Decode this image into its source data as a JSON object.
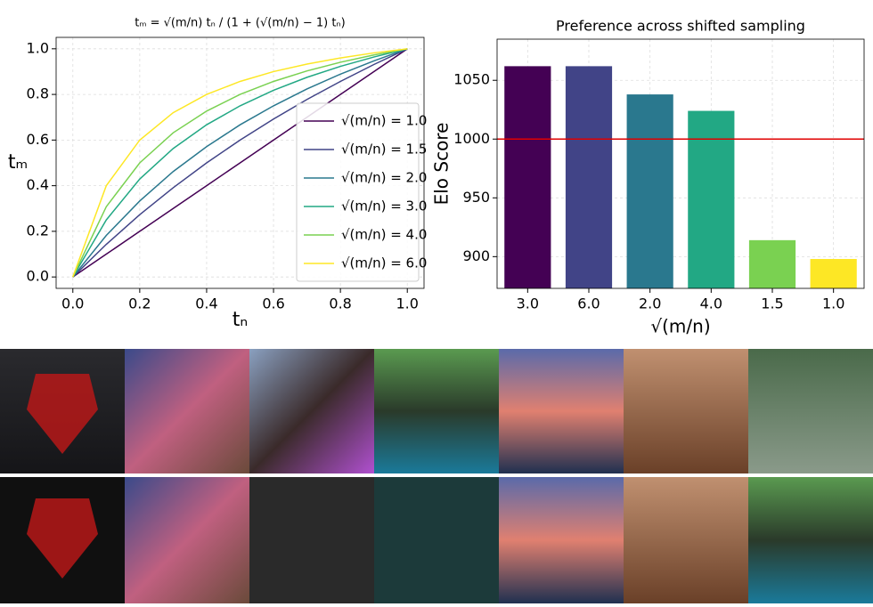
{
  "chart_data": [
    {
      "type": "line",
      "title": "tₘ = √(m/n) tₙ / (1 + (√(m/n) − 1) tₙ)",
      "x_label": "tₙ",
      "y_label": "tₘ",
      "x": [
        0,
        0.1,
        0.2,
        0.3,
        0.4,
        0.5,
        0.6,
        0.7,
        0.8,
        0.9,
        1
      ],
      "series": [
        {
          "name": "√(m/n) = 1.0",
          "color": "#440154",
          "values": [
            0,
            0.1,
            0.2,
            0.3,
            0.4,
            0.5,
            0.6,
            0.7,
            0.8,
            0.9,
            1
          ]
        },
        {
          "name": "√(m/n) = 1.5",
          "color": "#414487",
          "values": [
            0,
            0.143,
            0.273,
            0.391,
            0.5,
            0.6,
            0.692,
            0.778,
            0.857,
            0.931,
            1
          ]
        },
        {
          "name": "√(m/n) = 2.0",
          "color": "#2a788e",
          "values": [
            0,
            0.182,
            0.333,
            0.462,
            0.571,
            0.667,
            0.75,
            0.824,
            0.889,
            0.947,
            1
          ]
        },
        {
          "name": "√(m/n) = 3.0",
          "color": "#22a884",
          "values": [
            0,
            0.25,
            0.429,
            0.563,
            0.667,
            0.75,
            0.818,
            0.875,
            0.923,
            0.964,
            1
          ]
        },
        {
          "name": "√(m/n) = 4.0",
          "color": "#7ad151",
          "values": [
            0,
            0.308,
            0.5,
            0.632,
            0.727,
            0.8,
            0.857,
            0.903,
            0.941,
            0.973,
            1
          ]
        },
        {
          "name": "√(m/n) = 6.0",
          "color": "#fde725",
          "values": [
            0,
            0.4,
            0.6,
            0.72,
            0.8,
            0.857,
            0.9,
            0.933,
            0.96,
            0.982,
            1
          ]
        }
      ],
      "xlim": [
        -0.05,
        1.05
      ],
      "ylim": [
        -0.05,
        1.05
      ],
      "xticks": [
        {
          "value": 0,
          "label": "0.0"
        },
        0.2,
        0.4,
        0.6,
        0.8,
        {
          "value": 1,
          "label": "1.0"
        }
      ],
      "yticks": [
        {
          "value": 0,
          "label": "0.0"
        },
        0.2,
        0.4,
        0.6,
        0.8,
        {
          "value": 1,
          "label": "1.0"
        }
      ],
      "grid": true,
      "legend": "center right"
    },
    {
      "type": "bar",
      "title": "Preference across shifted sampling",
      "x_label": "√(m/n)",
      "y_label": "Elo Score",
      "categories": [
        "3.0",
        "6.0",
        "2.0",
        "4.0",
        "1.5",
        "1.0"
      ],
      "values": [
        1062,
        1062,
        1038,
        1024,
        914,
        898
      ],
      "colors": [
        "#440154",
        "#414487",
        "#2a788e",
        "#22a884",
        "#7ad151",
        "#fde725"
      ],
      "reference_line": 1000,
      "reference_color": "#e00000",
      "ylim": [
        873,
        1085
      ],
      "yticks": [
        900,
        950,
        1000,
        1050
      ],
      "grid": true
    }
  ]
}
